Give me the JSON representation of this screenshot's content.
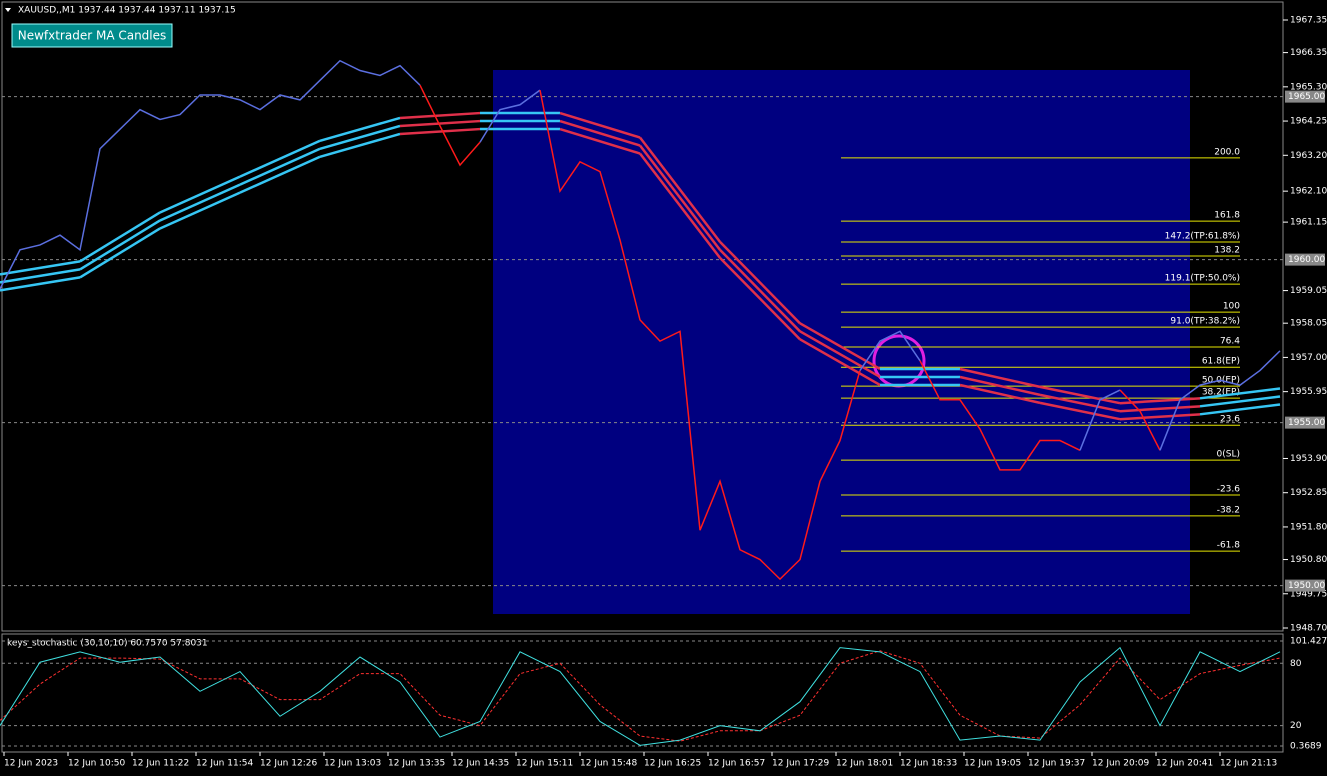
{
  "header": {
    "symbol_info": "XAUUSD,,M1  1937.44 1937.44 1937.11 1937.15",
    "indicator_button": "Newfxtrader MA Candles"
  },
  "price": {
    "ylim": [
      1948.7,
      1967.35
    ],
    "yticks": [
      {
        "value": 1967.35,
        "label": "1967.35"
      },
      {
        "value": 1966.35,
        "label": "1966.35"
      },
      {
        "value": 1965.3,
        "label": "1965.30"
      },
      {
        "value": 1964.25,
        "label": "1964.25"
      },
      {
        "value": 1963.2,
        "label": "1963.20"
      },
      {
        "value": 1962.1,
        "label": "1962.10"
      },
      {
        "value": 1961.15,
        "label": "1961.15"
      },
      {
        "value": 1959.05,
        "label": "1959.05"
      },
      {
        "value": 1958.05,
        "label": "1958.05"
      },
      {
        "value": 1957,
        "label": "1957.00"
      },
      {
        "value": 1955.95,
        "label": "1955.95"
      },
      {
        "value": 1953.9,
        "label": "1953.90"
      },
      {
        "value": 1952.85,
        "label": "1952.85"
      },
      {
        "value": 1951.8,
        "label": "1951.80"
      },
      {
        "value": 1950.8,
        "label": "1950.80"
      },
      {
        "value": 1949.75,
        "label": "1949.75"
      },
      {
        "value": 1948.7,
        "label": "1948.70"
      }
    ],
    "levels": [
      {
        "value": 1965,
        "label": "1965.00"
      },
      {
        "value": 1960,
        "label": "1960.00"
      },
      {
        "value": 1955,
        "label": "1955.00"
      },
      {
        "value": 1950,
        "label": "1950.00"
      }
    ],
    "values": [
      1959.1,
      1960.3,
      1960.45,
      1960.75,
      1960.3,
      1963.4,
      1964.0,
      1964.6,
      1964.3,
      1964.45,
      1965.05,
      1965.05,
      1964.9,
      1964.6,
      1965.05,
      1964.9,
      1965.5,
      1966.1,
      1965.8,
      1965.65,
      1965.95,
      1965.35,
      1964.1,
      1962.9,
      1963.6,
      1964.6,
      1964.75,
      1965.2,
      1962.1,
      1963.0,
      1962.7,
      1960.6,
      1958.15,
      1957.5,
      1957.8,
      1951.7,
      1953.2,
      1951.1,
      1950.8,
      1950.2,
      1950.8,
      1953.2,
      1954.45,
      1956.6,
      1957.5,
      1957.8,
      1956.9,
      1955.7,
      1955.7,
      1954.8,
      1953.55,
      1953.55,
      1954.45,
      1954.45,
      1954.15,
      1955.7,
      1956.0,
      1955.35,
      1954.15,
      1955.7,
      1956.15,
      1956.3,
      1956.15,
      1956.6,
      1957.2
    ],
    "ma": [
      1959.3,
      1959.7,
      1961.2,
      1962.3,
      1963.4,
      1964.1,
      1964.25,
      1964.25,
      1963.5,
      1960.3,
      1957.8,
      1956.4,
      1956.4,
      1955.85,
      1955.35,
      1955.5,
      1955.8
    ],
    "up_color": "#5b6fe0",
    "down_color": "#ff1a1a",
    "ma_up_color": "#36c6f4",
    "ma_down_color": "#e0304a",
    "fib": [
      {
        "value": 1963.12,
        "label": "200.0"
      },
      {
        "value": 1961.18,
        "label": "161.8"
      },
      {
        "value": 1960.54,
        "label": "147.2(TP:61.8%)"
      },
      {
        "value": 1960.11,
        "label": "138.2"
      },
      {
        "value": 1959.25,
        "label": "119.1(TP:50.0%)"
      },
      {
        "value": 1958.39,
        "label": "100"
      },
      {
        "value": 1957.93,
        "label": "91.0(TP:38.2%)"
      },
      {
        "value": 1957.32,
        "label": "76.4"
      },
      {
        "value": 1956.7,
        "label": "61.8(EP)"
      },
      {
        "value": 1956.12,
        "label": "50.0(EP)"
      },
      {
        "value": 1955.75,
        "label": "38.2(EP)"
      },
      {
        "value": 1954.92,
        "label": "23.6"
      },
      {
        "value": 1953.85,
        "label": "0(SL)"
      },
      {
        "value": 1952.78,
        "label": "-23.6"
      },
      {
        "value": 1952.14,
        "label": "-38.2"
      },
      {
        "value": 1951.06,
        "label": "-61.8"
      }
    ]
  },
  "time_labels": [
    "12 Jun 2023",
    "12 Jun 10:50",
    "12 Jun 11:22",
    "12 Jun 11:54",
    "12 Jun 12:26",
    "12 Jun 13:03",
    "12 Jun 13:35",
    "12 Jun 14:35",
    "12 Jun 15:11",
    "12 Jun 15:48",
    "12 Jun 16:25",
    "12 Jun 16:57",
    "12 Jun 17:29",
    "12 Jun 18:01",
    "12 Jun 18:33",
    "12 Jun 19:05",
    "12 Jun 19:37",
    "12 Jun 20:09",
    "12 Jun 20:41",
    "12 Jun 21:13"
  ],
  "stochastic": {
    "title": "keys_stochastic (30,10,10) 60.7570 57.8031",
    "ylim": [
      0.3689,
      101.4271
    ],
    "yticks": [
      101.4271,
      80,
      20,
      0.3689
    ],
    "main": [
      20,
      81,
      91,
      81,
      86,
      53,
      72,
      29,
      53,
      86,
      62,
      9,
      24,
      91,
      72,
      24,
      1,
      6,
      20,
      15,
      43,
      95,
      91,
      72,
      6,
      10,
      6,
      62,
      95,
      20,
      91,
      72,
      91
    ],
    "signal": [
      25,
      60,
      85,
      85,
      84,
      65,
      65,
      45,
      45,
      70,
      70,
      30,
      20,
      70,
      80,
      40,
      10,
      5,
      15,
      15,
      30,
      80,
      92,
      80,
      30,
      10,
      8,
      40,
      85,
      45,
      70,
      78,
      85
    ]
  }
}
